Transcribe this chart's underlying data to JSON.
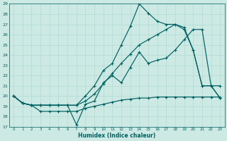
{
  "xlabel": "Humidex (Indice chaleur)",
  "ylabel": "",
  "xlim": [
    -0.5,
    23.5
  ],
  "ylim": [
    17,
    29
  ],
  "yticks": [
    17,
    18,
    19,
    20,
    21,
    22,
    23,
    24,
    25,
    26,
    27,
    28,
    29
  ],
  "xticks": [
    0,
    1,
    2,
    3,
    4,
    5,
    6,
    7,
    8,
    9,
    10,
    11,
    12,
    13,
    14,
    15,
    16,
    17,
    18,
    19,
    20,
    21,
    22,
    23
  ],
  "bg_color": "#cce9e4",
  "line_color": "#006060",
  "grid_color": "#aad8d0",
  "line1_x": [
    0,
    1,
    2,
    3,
    4,
    5,
    6,
    7,
    8,
    9,
    10,
    11,
    12,
    13,
    14,
    15,
    16,
    17,
    18,
    19,
    20,
    21,
    22,
    23
  ],
  "line1_y": [
    20.0,
    19.3,
    19.1,
    18.5,
    18.5,
    18.5,
    18.5,
    18.5,
    18.8,
    19.0,
    19.2,
    19.4,
    19.6,
    19.7,
    19.8,
    19.8,
    19.9,
    19.9,
    19.9,
    19.9,
    19.9,
    19.9,
    19.9,
    19.9
  ],
  "line2_x": [
    0,
    1,
    2,
    3,
    4,
    5,
    6,
    7,
    8,
    9,
    10,
    11,
    12,
    13,
    14,
    15,
    16,
    17,
    18,
    19,
    20,
    21,
    22,
    23
  ],
  "line2_y": [
    20.0,
    19.3,
    19.1,
    19.1,
    19.1,
    19.1,
    19.1,
    17.2,
    19.2,
    19.5,
    21.3,
    22.0,
    21.3,
    22.8,
    24.3,
    23.2,
    23.5,
    23.7,
    24.5,
    25.5,
    26.5,
    26.5,
    21.0,
    21.0
  ],
  "line3_x": [
    0,
    1,
    2,
    3,
    4,
    5,
    6,
    7,
    8,
    9,
    10,
    11,
    12,
    13,
    14,
    15,
    16,
    17,
    18,
    19,
    20,
    21,
    22,
    23
  ],
  "line3_y": [
    20.0,
    19.3,
    19.1,
    19.1,
    19.1,
    19.1,
    19.1,
    19.1,
    20.0,
    21.0,
    22.5,
    23.2,
    25.0,
    26.8,
    29.0,
    28.1,
    27.3,
    27.0,
    27.0,
    26.7,
    24.5,
    21.0,
    21.0,
    19.8
  ],
  "line4_x": [
    0,
    1,
    2,
    3,
    4,
    5,
    6,
    7,
    8,
    9,
    10,
    11,
    12,
    13,
    14,
    15,
    16,
    17,
    18,
    19,
    20,
    21,
    22,
    23
  ],
  "line4_y": [
    20.0,
    19.3,
    19.1,
    19.1,
    19.1,
    19.1,
    19.1,
    19.1,
    19.5,
    20.2,
    21.2,
    22.2,
    23.2,
    24.1,
    25.0,
    25.5,
    26.0,
    26.5,
    27.0,
    26.5,
    24.5,
    21.0,
    21.0,
    19.8
  ]
}
